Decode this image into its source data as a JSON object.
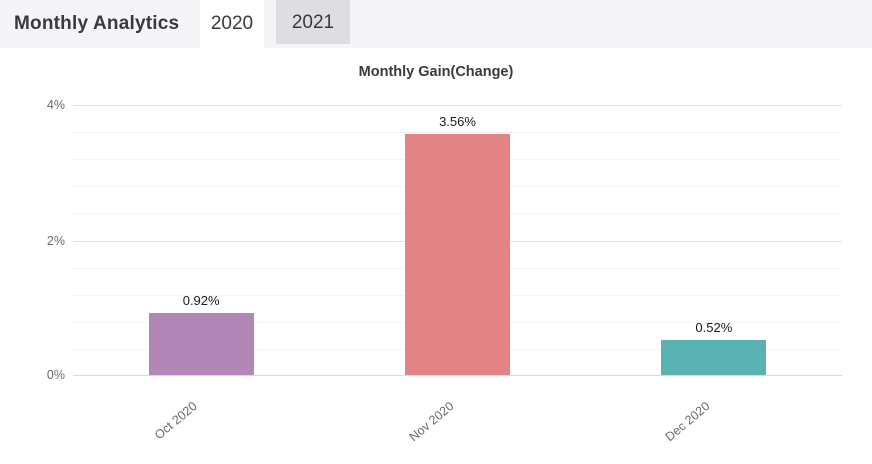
{
  "header": {
    "title": "Monthly Analytics",
    "tabs": [
      {
        "label": "2020",
        "active": true
      },
      {
        "label": "2021",
        "active": false
      }
    ]
  },
  "chart_data": {
    "type": "bar",
    "title": "Monthly Gain(Change)",
    "categories": [
      "Oct 2020",
      "Nov 2020",
      "Dec 2020"
    ],
    "values": [
      0.92,
      3.56,
      0.52
    ],
    "value_labels": [
      "0.92%",
      "3.56%",
      "0.52%"
    ],
    "bar_colors": [
      "#b287b8",
      "#e28385",
      "#5bb2b2"
    ],
    "ylim": [
      0,
      4
    ],
    "yticks": [
      0,
      2,
      4
    ],
    "ytick_labels": [
      "0%",
      "2%",
      "4%"
    ],
    "minor_tick_step": 0.4,
    "grid": true,
    "legend": false,
    "xlabel": "",
    "ylabel": ""
  },
  "colors": {
    "header_bg": "#f5f4f6",
    "tab_active_bg": "#ffffff",
    "tab_inactive_bg": "#dedde0",
    "grid_major": "#e3e3e3",
    "grid_minor": "#f4f4f4",
    "text_dark": "#3a3a3e",
    "text_muted": "#6a6a6a"
  }
}
